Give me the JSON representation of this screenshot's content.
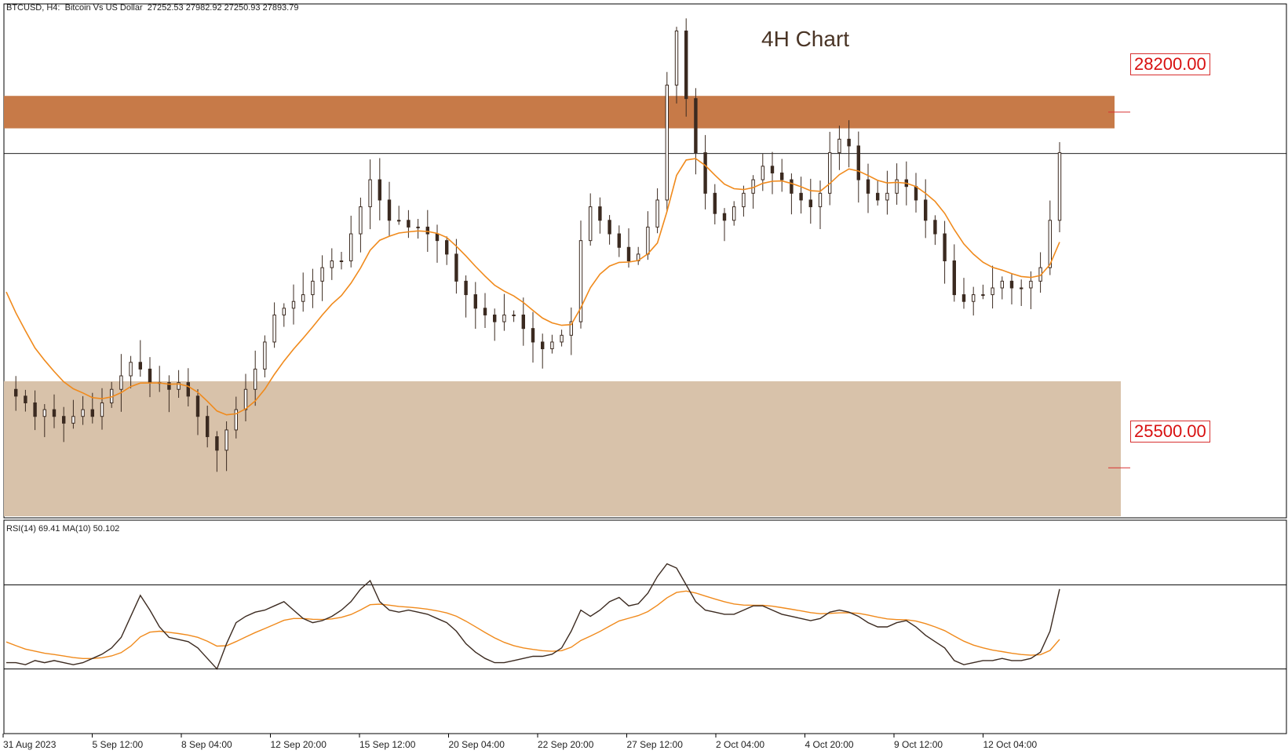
{
  "header": {
    "symbol": "BTCUSD",
    "timeframe": "H4:",
    "description": "Bitcoin Vs US Dollar",
    "ohlc": "27252.53 27982.92 27250.93 27893.79"
  },
  "chart_title": "4H Chart",
  "rsi_header": "RSI(14) 69.41 MA(10) 50.102",
  "colors": {
    "candle": "#3b2a20",
    "ma_line": "#f08a1c",
    "resistance_zone": "#c77a48",
    "support_zone": "#d8c2aa",
    "level_label": "#d81010"
  },
  "chart_data": {
    "type": "candlestick",
    "y_range": [
      25200,
      29000
    ],
    "levels": [
      {
        "label": "28200.00",
        "value": 28200,
        "zone": [
          28080,
          28320
        ]
      },
      {
        "label": "25500.00",
        "value": 25500,
        "zone": [
          25200,
          26210
        ]
      }
    ],
    "current_price_line": 27893.79,
    "x_ticks": [
      "31 Aug 2023",
      "5 Sep 12:00",
      "8 Sep 04:00",
      "12 Sep 20:00",
      "15 Sep 12:00",
      "20 Sep 04:00",
      "22 Sep 20:00",
      "27 Sep 12:00",
      "2 Oct 04:00",
      "4 Oct 20:00",
      "9 Oct 12:00",
      "12 Oct 04:00"
    ],
    "price_path": [
      26150,
      26100,
      26050,
      25950,
      26000,
      25950,
      25900,
      25950,
      26000,
      25950,
      26050,
      26150,
      26250,
      26350,
      26300,
      26200,
      26200,
      26150,
      26200,
      26100,
      25950,
      25800,
      25700,
      25850,
      26000,
      26150,
      26300,
      26500,
      26700,
      26750,
      26800,
      26850,
      26950,
      27050,
      27100,
      27100,
      27300,
      27500,
      27700,
      27550,
      27400,
      27400,
      27350,
      27350,
      27300,
      27250,
      27150,
      26950,
      26850,
      26750,
      26700,
      26650,
      26700,
      26700,
      26600,
      26500,
      26450,
      26500,
      26550,
      26650,
      27250,
      27500,
      27400,
      27300,
      27200,
      27100,
      27150,
      27350,
      27550,
      28400,
      28800,
      28300,
      27900,
      27600,
      27450,
      27400,
      27500,
      27600,
      27700,
      27800,
      27750,
      27700,
      27600,
      27550,
      27500,
      27600,
      27900,
      28000,
      27950,
      27700,
      27600,
      27550,
      27600,
      27700,
      27650,
      27550,
      27400,
      27300,
      27100,
      26850,
      26800,
      26850,
      26850,
      26900,
      26950,
      26900,
      26900,
      26950,
      27050,
      27400,
      27900
    ],
    "rsi": {
      "levels": [
        70,
        30
      ],
      "values": [
        33,
        33,
        32,
        34,
        33,
        34,
        33,
        32,
        33,
        35,
        37,
        40,
        45,
        55,
        65,
        58,
        50,
        45,
        44,
        43,
        40,
        35,
        30,
        42,
        52,
        55,
        57,
        58,
        60,
        62,
        58,
        54,
        52,
        53,
        55,
        58,
        62,
        68,
        72,
        62,
        58,
        57,
        58,
        57,
        56,
        54,
        52,
        48,
        42,
        38,
        35,
        33,
        33,
        34,
        35,
        36,
        36,
        37,
        40,
        48,
        58,
        55,
        58,
        62,
        64,
        60,
        61,
        66,
        74,
        80,
        78,
        70,
        62,
        58,
        57,
        56,
        56,
        58,
        60,
        60,
        58,
        56,
        55,
        54,
        53,
        54,
        57,
        58,
        57,
        55,
        52,
        50,
        50,
        52,
        53,
        50,
        46,
        43,
        40,
        34,
        32,
        33,
        34,
        34,
        35,
        34,
        34,
        35,
        38,
        48,
        68
      ]
    }
  }
}
